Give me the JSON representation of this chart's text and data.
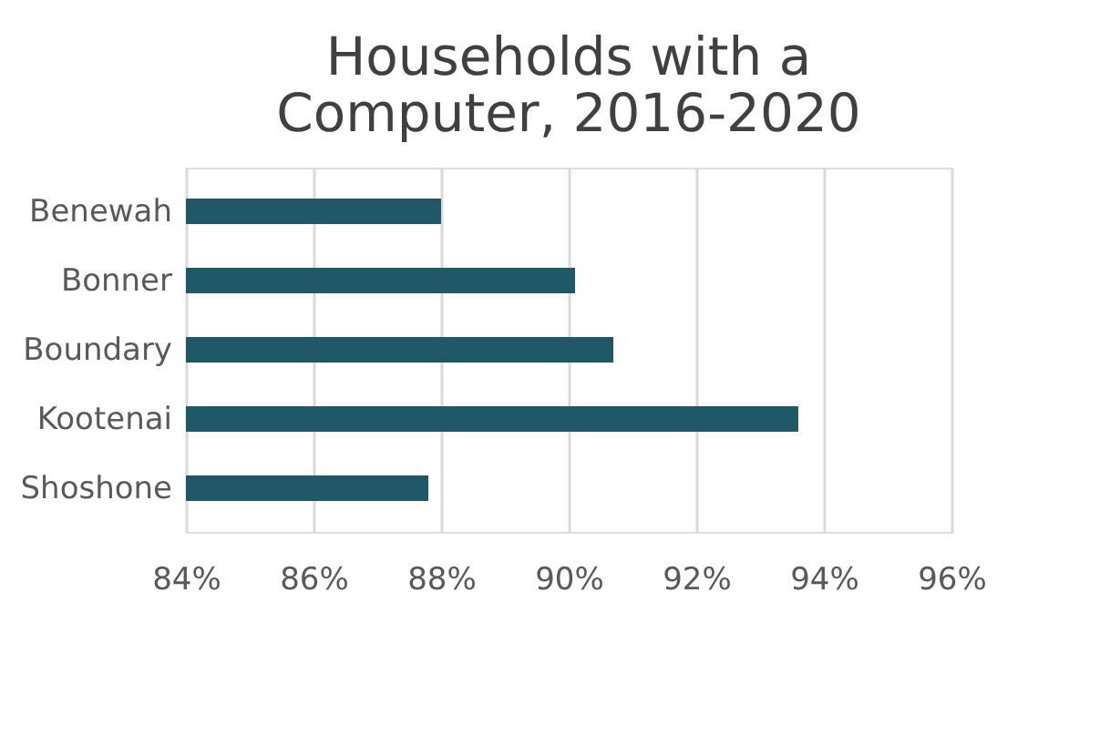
{
  "chart_data": {
    "type": "bar",
    "orientation": "horizontal",
    "title": [
      "Households with a",
      "Computer, 2016-2020"
    ],
    "categories": [
      "Benewah",
      "Bonner",
      "Boundary",
      "Kootenai",
      "Shoshone"
    ],
    "values": [
      88.0,
      90.1,
      90.7,
      93.6,
      87.8
    ],
    "color": "#215868",
    "xlim": [
      84,
      96
    ],
    "xticks": [
      {
        "value": 84,
        "label": "84%"
      },
      {
        "value": 86,
        "label": "86%"
      },
      {
        "value": 88,
        "label": "88%"
      },
      {
        "value": 90,
        "label": "90%"
      },
      {
        "value": 92,
        "label": "92%"
      },
      {
        "value": 94,
        "label": "94%"
      },
      {
        "value": 96,
        "label": "96%"
      }
    ],
    "grid": "x"
  }
}
